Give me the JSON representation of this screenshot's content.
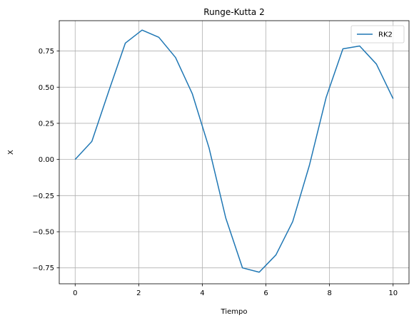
{
  "chart_data": {
    "type": "line",
    "title": "Runge-Kutta 2",
    "xlabel": "Tiempo",
    "ylabel": "X",
    "xlim": [
      -0.5,
      10.5
    ],
    "ylim": [
      -0.86,
      0.96
    ],
    "xticks": [
      0,
      2,
      4,
      6,
      8,
      10
    ],
    "yticks": [
      -0.75,
      -0.5,
      -0.25,
      0.0,
      0.25,
      0.5,
      0.75
    ],
    "ytick_labels": [
      "−0.75",
      "−0.50",
      "−0.25",
      "0.00",
      "0.25",
      "0.50",
      "0.75"
    ],
    "xtick_labels": [
      "0",
      "2",
      "4",
      "6",
      "8",
      "10"
    ],
    "grid": true,
    "legend_position": "top-right",
    "series": [
      {
        "name": "RK2",
        "color": "#1f77b4",
        "x": [
          0.0,
          0.526,
          1.053,
          1.579,
          2.105,
          2.632,
          3.158,
          3.684,
          4.211,
          4.737,
          5.263,
          5.789,
          6.316,
          6.842,
          7.368,
          7.895,
          8.421,
          8.947,
          9.474,
          10.0
        ],
        "y": [
          0.0,
          0.125,
          0.47,
          0.805,
          0.895,
          0.845,
          0.705,
          0.455,
          0.08,
          -0.405,
          -0.75,
          -0.78,
          -0.66,
          -0.43,
          -0.04,
          0.43,
          0.765,
          0.785,
          0.66,
          0.42
        ]
      }
    ]
  }
}
